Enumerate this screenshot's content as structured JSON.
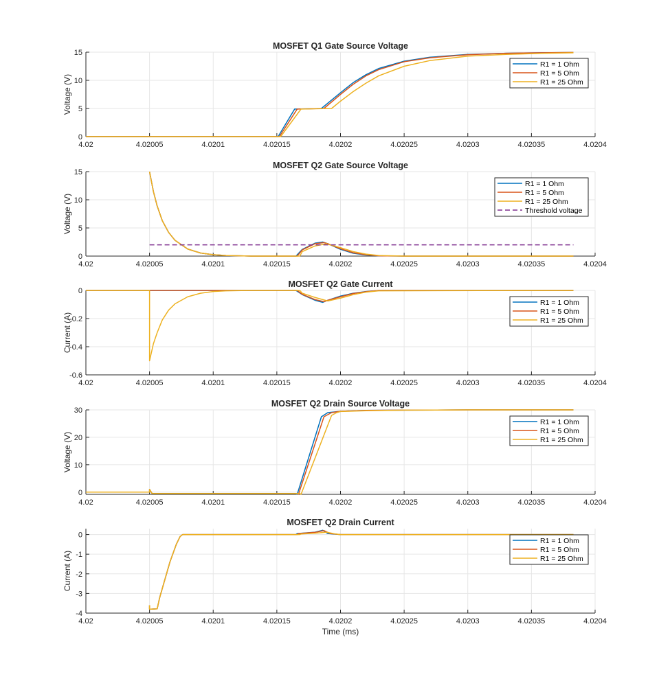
{
  "chart_data": [
    {
      "type": "line",
      "title": "MOSFET Q1 Gate Source Voltage",
      "xlabel": "",
      "ylabel": "Voltage (V)",
      "xlim": [
        4.02,
        4.0204
      ],
      "ylim": [
        0,
        15
      ],
      "xticks": [
        4.02,
        4.02005,
        4.0201,
        4.02015,
        4.0202,
        4.02025,
        4.0203,
        4.02035,
        4.0204
      ],
      "xtick_labels": [
        "4.02",
        "4.02005",
        "4.0201",
        "4.02015",
        "4.0202",
        "4.02025",
        "4.0203",
        "4.02035",
        "4.0204"
      ],
      "yticks": [
        0,
        5,
        10,
        15
      ],
      "ytick_labels": [
        "0",
        "5",
        "10",
        "15"
      ],
      "grid": true,
      "legend_position": "top-right",
      "series": [
        {
          "name": "R1 = 1 Ohm",
          "color": "#0072BD",
          "x": [
            4.02,
            4.020151,
            4.020164,
            4.020185,
            4.0202,
            4.02021,
            4.02022,
            4.02023,
            4.02025,
            4.02027,
            4.0203,
            4.02033,
            4.02036,
            4.020383
          ],
          "y": [
            0,
            0,
            4.9,
            5,
            7.8,
            9.6,
            11.0,
            12.1,
            13.4,
            14.1,
            14.6,
            14.8,
            14.9,
            14.95
          ]
        },
        {
          "name": "R1 = 5 Ohm",
          "color": "#D95319",
          "x": [
            4.02,
            4.020152,
            4.020166,
            4.020187,
            4.0202,
            4.02021,
            4.02022,
            4.02023,
            4.02025,
            4.02027,
            4.0203,
            4.02033,
            4.02036,
            4.020383
          ],
          "y": [
            0,
            0,
            4.9,
            5,
            7.5,
            9.3,
            10.8,
            11.9,
            13.3,
            14.0,
            14.55,
            14.8,
            14.9,
            14.95
          ]
        },
        {
          "name": "R1 = 25 Ohm",
          "color": "#EDB120",
          "x": [
            4.02,
            4.020153,
            4.020169,
            4.020193,
            4.0202,
            4.02021,
            4.02022,
            4.02023,
            4.02025,
            4.02027,
            4.0203,
            4.02033,
            4.02036,
            4.020383
          ],
          "y": [
            0,
            0,
            4.9,
            5,
            6.3,
            8.0,
            9.5,
            10.8,
            12.5,
            13.5,
            14.3,
            14.6,
            14.8,
            14.9
          ]
        }
      ]
    },
    {
      "type": "line",
      "title": "MOSFET Q2 Gate Source Voltage",
      "xlabel": "",
      "ylabel": "Voltage (V)",
      "xlim": [
        4.02,
        4.0204
      ],
      "ylim": [
        0,
        15
      ],
      "xticks": [
        4.02,
        4.02005,
        4.0201,
        4.02015,
        4.0202,
        4.02025,
        4.0203,
        4.02035,
        4.0204
      ],
      "xtick_labels": [
        "4.02",
        "4.02005",
        "4.0201",
        "4.02015",
        "4.0202",
        "4.02025",
        "4.0203",
        "4.02035",
        "4.0204"
      ],
      "yticks": [
        0,
        5,
        10,
        15
      ],
      "ytick_labels": [
        "0",
        "5",
        "10",
        "15"
      ],
      "grid": true,
      "legend_position": "top-right",
      "series": [
        {
          "name": "R1 = 1 Ohm",
          "color": "#0072BD",
          "x": [
            4.02005,
            4.020053,
            4.020056,
            4.02006,
            4.020065,
            4.02007,
            4.02008,
            4.02009,
            4.0201,
            4.02011,
            4.02013,
            4.020165,
            4.02017,
            4.02018,
            4.020186,
            4.02019,
            4.0202,
            4.02021,
            4.02022,
            4.02023,
            4.02025,
            4.02028,
            4.02032,
            4.020383
          ],
          "y": [
            15,
            11.5,
            8.9,
            6.3,
            4.2,
            2.8,
            1.25,
            0.55,
            0.25,
            0.1,
            0,
            0,
            1.2,
            2.3,
            2.5,
            2.2,
            1.2,
            0.5,
            0.2,
            0.05,
            0,
            0,
            0,
            0
          ]
        },
        {
          "name": "R1 = 5 Ohm",
          "color": "#D95319",
          "x": [
            4.02005,
            4.020053,
            4.020056,
            4.02006,
            4.020065,
            4.02007,
            4.02008,
            4.02009,
            4.0201,
            4.02011,
            4.02013,
            4.020166,
            4.02017,
            4.02018,
            4.020187,
            4.02019,
            4.0202,
            4.02021,
            4.02022,
            4.02023,
            4.02025,
            4.02028,
            4.02032,
            4.020383
          ],
          "y": [
            15,
            11.5,
            8.9,
            6.3,
            4.2,
            2.8,
            1.25,
            0.55,
            0.25,
            0.1,
            0,
            0,
            1.1,
            2.2,
            2.4,
            2.2,
            1.3,
            0.6,
            0.25,
            0.05,
            0,
            0,
            0,
            0
          ]
        },
        {
          "name": "R1 = 25 Ohm",
          "color": "#EDB120",
          "x": [
            4.02005,
            4.020053,
            4.020056,
            4.02006,
            4.020065,
            4.02007,
            4.02008,
            4.02009,
            4.0201,
            4.02011,
            4.02013,
            4.020168,
            4.02017,
            4.02018,
            4.020189,
            4.02019,
            4.0202,
            4.02021,
            4.02022,
            4.02023,
            4.02025,
            4.02028,
            4.02032,
            4.020383
          ],
          "y": [
            15,
            11.5,
            8.9,
            6.3,
            4.2,
            2.8,
            1.25,
            0.55,
            0.25,
            0.1,
            0,
            0,
            0.8,
            1.8,
            2.2,
            2.1,
            1.5,
            0.8,
            0.35,
            0.1,
            0,
            0,
            0,
            0
          ]
        },
        {
          "name": "Threshold voltage",
          "color": "#7E2F8E",
          "dashed": true,
          "x": [
            4.02005,
            4.020383
          ],
          "y": [
            2,
            2
          ]
        }
      ]
    },
    {
      "type": "line",
      "title": "MOSFET Q2 Gate Current",
      "xlabel": "",
      "ylabel": "Current (A)",
      "xlim": [
        4.02,
        4.0204
      ],
      "ylim": [
        -0.6,
        0
      ],
      "xticks": [
        4.02,
        4.02005,
        4.0201,
        4.02015,
        4.0202,
        4.02025,
        4.0203,
        4.02035,
        4.0204
      ],
      "xtick_labels": [
        "4.02",
        "4.02005",
        "4.0201",
        "4.02015",
        "4.0202",
        "4.02025",
        "4.0203",
        "4.02035",
        "4.0204"
      ],
      "yticks": [
        -0.6,
        -0.4,
        -0.2,
        0
      ],
      "ytick_labels": [
        "-0.6",
        "-0.4",
        "-0.2",
        "0"
      ],
      "grid": true,
      "legend_position": "top-right",
      "series": [
        {
          "name": "R1 = 1 Ohm",
          "color": "#0072BD",
          "x": [
            4.02,
            4.02005,
            4.020165,
            4.02017,
            4.02018,
            4.020186,
            4.02019,
            4.0202,
            4.02021,
            4.02022,
            4.02023,
            4.020383
          ],
          "y": [
            0,
            0,
            0,
            -0.03,
            -0.07,
            -0.085,
            -0.07,
            -0.04,
            -0.02,
            -0.008,
            0,
            0
          ]
        },
        {
          "name": "R1 = 5 Ohm",
          "color": "#D95319",
          "x": [
            4.02,
            4.02005,
            4.020166,
            4.02017,
            4.02018,
            4.020187,
            4.02019,
            4.0202,
            4.02021,
            4.02022,
            4.02023,
            4.020383
          ],
          "y": [
            0,
            0,
            0,
            -0.028,
            -0.065,
            -0.08,
            -0.07,
            -0.045,
            -0.022,
            -0.009,
            0,
            0
          ]
        },
        {
          "name": "R1 = 25 Ohm",
          "color": "#EDB120",
          "x": [
            4.02,
            4.02005,
            4.02005,
            4.020053,
            4.020056,
            4.02006,
            4.020065,
            4.02007,
            4.02008,
            4.02009,
            4.0201,
            4.02011,
            4.02013,
            4.020168,
            4.02017,
            4.02018,
            4.02019,
            4.0202,
            4.02021,
            4.02022,
            4.02023,
            4.020383
          ],
          "y": [
            0,
            0,
            -0.5,
            -0.38,
            -0.3,
            -0.21,
            -0.14,
            -0.095,
            -0.045,
            -0.02,
            -0.008,
            -0.003,
            0,
            0,
            -0.02,
            -0.05,
            -0.075,
            -0.055,
            -0.03,
            -0.012,
            -0.003,
            0
          ]
        }
      ]
    },
    {
      "type": "line",
      "title": "MOSFET Q2 Drain Source Voltage",
      "xlabel": "",
      "ylabel": "Voltage (V)",
      "xlim": [
        4.02,
        4.0204
      ],
      "ylim": [
        -0.8,
        30
      ],
      "xticks": [
        4.02,
        4.02005,
        4.0201,
        4.02015,
        4.0202,
        4.02025,
        4.0203,
        4.02035,
        4.0204
      ],
      "xtick_labels": [
        "4.02",
        "4.02005",
        "4.0201",
        "4.02015",
        "4.0202",
        "4.02025",
        "4.0203",
        "4.02035",
        "4.0204"
      ],
      "yticks": [
        0,
        10,
        20,
        30
      ],
      "ytick_labels": [
        "0",
        "10",
        "20",
        "30"
      ],
      "grid": true,
      "legend_position": "top-right",
      "series": [
        {
          "name": "R1 = 1 Ohm",
          "color": "#0072BD",
          "x": [
            4.02,
            4.02005,
            4.02005,
            4.020052,
            4.020165,
            4.020166,
            4.020185,
            4.02019,
            4.0202,
            4.02022,
            4.02025,
            4.0203,
            4.020383
          ],
          "y": [
            0,
            0,
            1.0,
            -0.5,
            -0.5,
            -0.8,
            27.5,
            29,
            29.5,
            29.8,
            29.9,
            30,
            30
          ]
        },
        {
          "name": "R1 = 5 Ohm",
          "color": "#D95319",
          "x": [
            4.02,
            4.02005,
            4.02005,
            4.020052,
            4.020166,
            4.020167,
            4.020187,
            4.020193,
            4.0202,
            4.02022,
            4.02025,
            4.0203,
            4.020383
          ],
          "y": [
            0,
            0,
            1.0,
            -0.5,
            -0.5,
            -0.8,
            27.5,
            29,
            29.5,
            29.8,
            29.9,
            30,
            30
          ]
        },
        {
          "name": "R1 = 25 Ohm",
          "color": "#EDB120",
          "x": [
            4.02,
            4.02005,
            4.02005,
            4.020052,
            4.020168,
            4.020169,
            4.020193,
            4.020197,
            4.0202,
            4.02022,
            4.02025,
            4.0203,
            4.020383
          ],
          "y": [
            0,
            0,
            1.0,
            -0.5,
            -0.5,
            -0.8,
            28,
            29,
            29.4,
            29.7,
            29.9,
            30,
            30
          ]
        }
      ]
    },
    {
      "type": "line",
      "title": "MOSFET Q2 Drain Current",
      "xlabel": "Time (ms)",
      "ylabel": "Current (A)",
      "xlim": [
        4.02,
        4.0204
      ],
      "ylim": [
        -4,
        0.3
      ],
      "xticks": [
        4.02,
        4.02005,
        4.0201,
        4.02015,
        4.0202,
        4.02025,
        4.0203,
        4.02035,
        4.0204
      ],
      "xtick_labels": [
        "4.02",
        "4.02005",
        "4.0201",
        "4.02015",
        "4.0202",
        "4.02025",
        "4.0203",
        "4.02035",
        "4.0204"
      ],
      "yticks": [
        -4,
        -3,
        -2,
        -1,
        0
      ],
      "ytick_labels": [
        "-4",
        "-3",
        "-2",
        "-1",
        "0"
      ],
      "grid": true,
      "legend_position": "top-right",
      "series": [
        {
          "name": "R1 = 1 Ohm",
          "color": "#0072BD",
          "x": [
            4.02005,
            4.02005,
            4.020051,
            4.020056,
            4.020058,
            4.020062,
            4.020066,
            4.020071,
            4.020074,
            4.020076,
            4.020165,
            4.020166,
            4.02018,
            4.020186,
            4.02019,
            4.0202,
            4.02021,
            4.020383
          ],
          "y": [
            -3.6,
            -3.8,
            -3.8,
            -3.78,
            -3.2,
            -2.3,
            -1.4,
            -0.5,
            -0.1,
            0,
            0,
            0.05,
            0.12,
            0.22,
            0.05,
            0,
            0,
            0
          ]
        },
        {
          "name": "R1 = 5 Ohm",
          "color": "#D95319",
          "x": [
            4.02005,
            4.02005,
            4.020051,
            4.020056,
            4.020058,
            4.020062,
            4.020066,
            4.020071,
            4.020074,
            4.020076,
            4.020166,
            4.020167,
            4.02018,
            4.020187,
            4.020192,
            4.0202,
            4.02021,
            4.020383
          ],
          "y": [
            -3.6,
            -3.8,
            -3.8,
            -3.78,
            -3.2,
            -2.3,
            -1.4,
            -0.5,
            -0.1,
            0,
            0,
            0.05,
            0.11,
            0.2,
            0.05,
            0,
            0,
            0
          ]
        },
        {
          "name": "R1 = 25 Ohm",
          "color": "#EDB120",
          "x": [
            4.02005,
            4.02005,
            4.020051,
            4.020056,
            4.020058,
            4.020062,
            4.020066,
            4.020071,
            4.020074,
            4.020076,
            4.020168,
            4.020169,
            4.02018,
            4.020189,
            4.020196,
            4.0202,
            4.02021,
            4.020383
          ],
          "y": [
            -3.6,
            -3.8,
            -3.8,
            -3.78,
            -3.2,
            -2.3,
            -1.4,
            -0.5,
            -0.1,
            0,
            0,
            0.03,
            0.07,
            0.12,
            0.03,
            0,
            0,
            0
          ]
        }
      ]
    }
  ]
}
